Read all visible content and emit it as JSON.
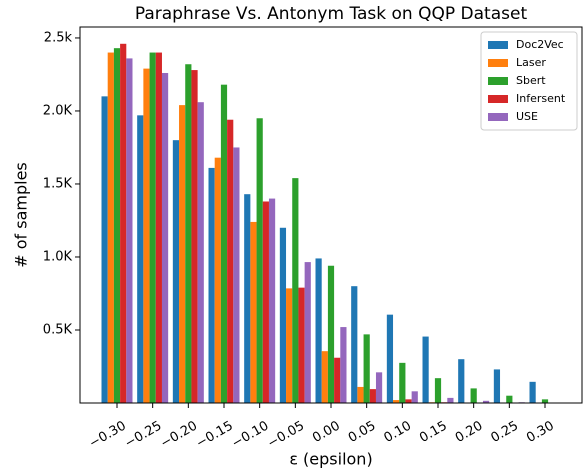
{
  "chart_data": {
    "type": "bar",
    "title": "Paraphrase Vs. Antonym Task on QQP Dataset",
    "x_label": "ε (epsilon)",
    "y_label": "# of samples",
    "categories": [
      "−0.30",
      "−0.25",
      "−0.20",
      "−0.15",
      "−0.10",
      "−0.05",
      "0.00",
      "0.05",
      "0.10",
      "0.15",
      "0.20",
      "0.25",
      "0.30"
    ],
    "series": [
      {
        "name": "Doc2Vec",
        "color": "#1f77b4",
        "values": [
          2100,
          1970,
          1800,
          1610,
          1430,
          1200,
          990,
          800,
          605,
          455,
          300,
          230,
          145
        ]
      },
      {
        "name": "Laser",
        "color": "#ff7f0e",
        "values": [
          2400,
          2290,
          2040,
          1680,
          1240,
          785,
          355,
          110,
          20,
          5,
          0,
          0,
          0
        ]
      },
      {
        "name": "Sbert",
        "color": "#2ca02c",
        "values": [
          2430,
          2400,
          2320,
          2180,
          1950,
          1540,
          940,
          470,
          275,
          170,
          100,
          50,
          25
        ]
      },
      {
        "name": "Infersent",
        "color": "#d62728",
        "values": [
          2460,
          2400,
          2280,
          1940,
          1380,
          790,
          310,
          95,
          25,
          5,
          0,
          0,
          0
        ]
      },
      {
        "name": "USE",
        "color": "#9467bd",
        "values": [
          2360,
          2260,
          2060,
          1750,
          1400,
          965,
          520,
          210,
          80,
          35,
          15,
          5,
          0
        ]
      }
    ],
    "ylim": [
      0,
      2575
    ],
    "yticks": [
      {
        "value": 500,
        "label": "0.5K"
      },
      {
        "value": 1000,
        "label": "1.0K"
      },
      {
        "value": 1500,
        "label": "1.5K"
      },
      {
        "value": 2000,
        "label": "2.0K"
      },
      {
        "value": 2500,
        "label": "2.5k"
      }
    ],
    "legend": "upper right",
    "grid": false
  }
}
